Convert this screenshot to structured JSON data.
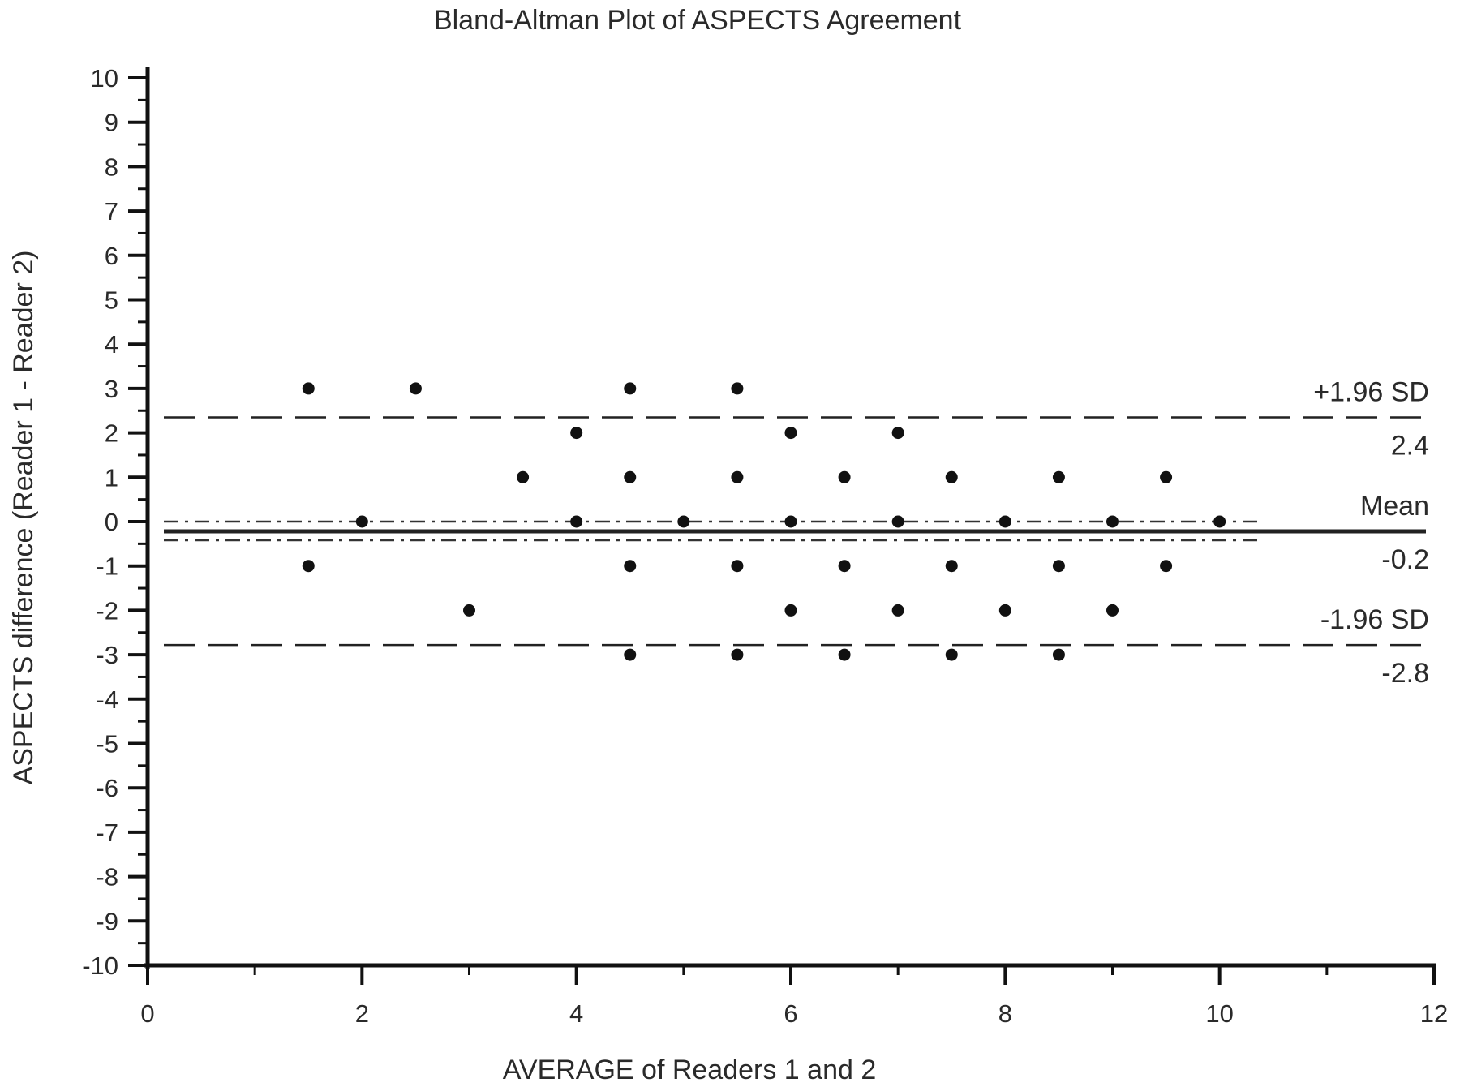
{
  "chart_data": {
    "type": "scatter",
    "title": "Bland-Altman Plot of ASPECTS Agreement",
    "xlabel": "AVERAGE of Readers 1 and 2",
    "ylabel": "ASPECTS difference (Reader 1 - Reader 2)",
    "xlim": [
      0,
      12
    ],
    "ylim": [
      -10,
      10
    ],
    "x_ticks": [
      0,
      2,
      4,
      6,
      8,
      10,
      12
    ],
    "y_ticks": [
      10,
      9,
      8,
      7,
      6,
      5,
      4,
      3,
      2,
      1,
      0,
      -1,
      -2,
      -3,
      -4,
      -5,
      -6,
      -7,
      -8,
      -9,
      -10
    ],
    "grid": false,
    "points": [
      {
        "x": 1.5,
        "y": 3
      },
      {
        "x": 2.5,
        "y": 3
      },
      {
        "x": 4.5,
        "y": 3
      },
      {
        "x": 5.5,
        "y": 3
      },
      {
        "x": 4,
        "y": 2
      },
      {
        "x": 6,
        "y": 2
      },
      {
        "x": 7,
        "y": 2
      },
      {
        "x": 3.5,
        "y": 1
      },
      {
        "x": 4.5,
        "y": 1
      },
      {
        "x": 5.5,
        "y": 1
      },
      {
        "x": 6.5,
        "y": 1
      },
      {
        "x": 7.5,
        "y": 1
      },
      {
        "x": 8.5,
        "y": 1
      },
      {
        "x": 9.5,
        "y": 1
      },
      {
        "x": 2,
        "y": 0
      },
      {
        "x": 4,
        "y": 0
      },
      {
        "x": 5,
        "y": 0
      },
      {
        "x": 6,
        "y": 0
      },
      {
        "x": 7,
        "y": 0
      },
      {
        "x": 8,
        "y": 0
      },
      {
        "x": 9,
        "y": 0
      },
      {
        "x": 10,
        "y": 0
      },
      {
        "x": 1.5,
        "y": -1
      },
      {
        "x": 4.5,
        "y": -1
      },
      {
        "x": 5.5,
        "y": -1
      },
      {
        "x": 6.5,
        "y": -1
      },
      {
        "x": 7.5,
        "y": -1
      },
      {
        "x": 8.5,
        "y": -1
      },
      {
        "x": 9.5,
        "y": -1
      },
      {
        "x": 3,
        "y": -2
      },
      {
        "x": 6,
        "y": -2
      },
      {
        "x": 7,
        "y": -2
      },
      {
        "x": 8,
        "y": -2
      },
      {
        "x": 9,
        "y": -2
      },
      {
        "x": 4.5,
        "y": -3
      },
      {
        "x": 5.5,
        "y": -3
      },
      {
        "x": 6.5,
        "y": -3
      },
      {
        "x": 7.5,
        "y": -3
      },
      {
        "x": 8.5,
        "y": -3
      }
    ],
    "reference_lines": [
      {
        "label": "+1.96 SD",
        "value_label": "2.4",
        "y": 2.35,
        "style": "dashed"
      },
      {
        "label": "Mean",
        "value_label": "-0.2",
        "y": -0.22,
        "style": "solid"
      },
      {
        "label": "-1.96 SD",
        "value_label": "-2.8",
        "y": -2.78,
        "style": "dashed"
      }
    ],
    "mean_ci": {
      "upper": 0.0,
      "lower": -0.42,
      "style": "dash-dot"
    }
  }
}
